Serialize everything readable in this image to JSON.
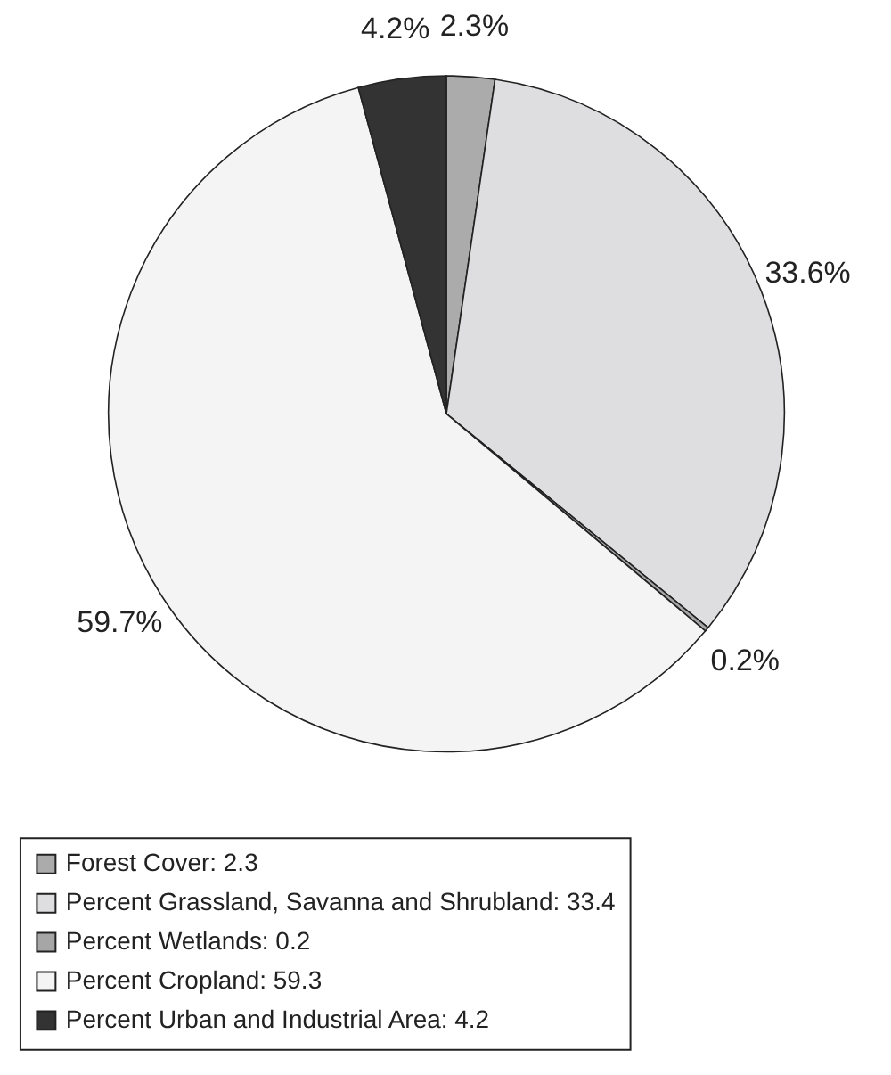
{
  "chart_data": {
    "type": "pie",
    "categories": [
      "Forest Cover: 2.3",
      "Percent Grassland, Savanna and Shrubland: 33.4",
      "Percent Wetlands: 0.2",
      "Percent Cropland: 59.3",
      "Percent Urban and Industrial Area: 4.2"
    ],
    "values": [
      2.3,
      33.6,
      0.2,
      59.7,
      4.2
    ],
    "value_labels": [
      "2.3%",
      "33.6%",
      "0.2%",
      "59.7%",
      "4.2%"
    ],
    "colors": [
      "#ababab",
      "#dedee0",
      "#a6a6a6",
      "#f4f4f4",
      "#333333"
    ],
    "legend": "bottom"
  }
}
